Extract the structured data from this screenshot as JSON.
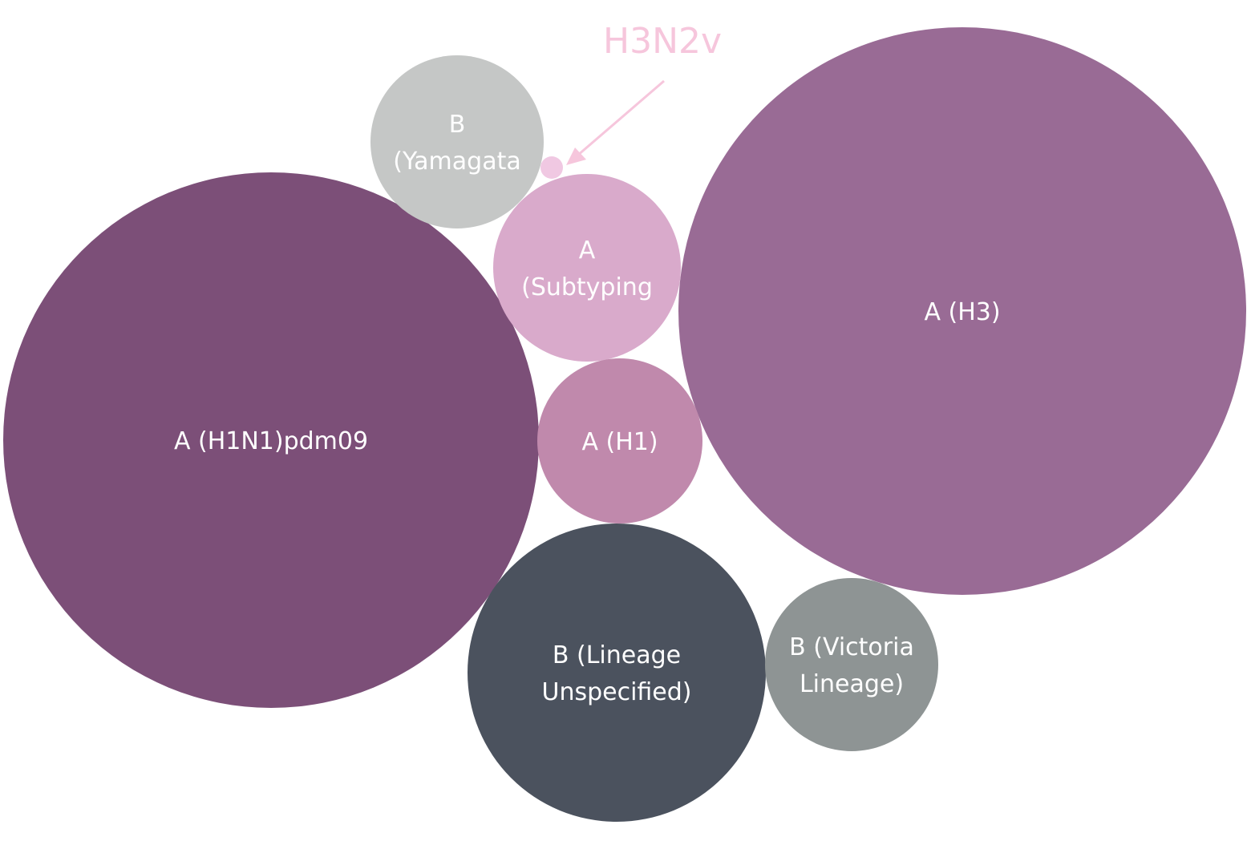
{
  "chart_data": {
    "type": "bubble",
    "title": "",
    "series": [
      {
        "key": "h1n1",
        "label_lines": [
          "A (H1N1)pdm09"
        ],
        "color": "#7c4f78"
      },
      {
        "key": "h3",
        "label_lines": [
          "A (H3)"
        ],
        "color": "#996b95"
      },
      {
        "key": "b_unspecified",
        "label_lines": [
          "B (Lineage",
          "Unspecified)"
        ],
        "color": "#4b525e"
      },
      {
        "key": "a_subtyping",
        "label_lines": [
          "A",
          "(Subtyping"
        ],
        "color": "#d9aacb"
      },
      {
        "key": "b_yamagata",
        "label_lines": [
          "B",
          "(Yamagata"
        ],
        "color": "#c5c7c6"
      },
      {
        "key": "b_victoria",
        "label_lines": [
          "B (Victoria",
          "Lineage)"
        ],
        "color": "#8e9494"
      },
      {
        "key": "a_h1",
        "label_lines": [
          "A (H1)"
        ],
        "color": "#c089ac"
      },
      {
        "key": "h3n2v",
        "label_lines": [],
        "color": "#f0c8e2"
      }
    ],
    "annotation": {
      "target": "h3n2v",
      "text": "H3N2v",
      "color": "#f6c6dc"
    }
  }
}
